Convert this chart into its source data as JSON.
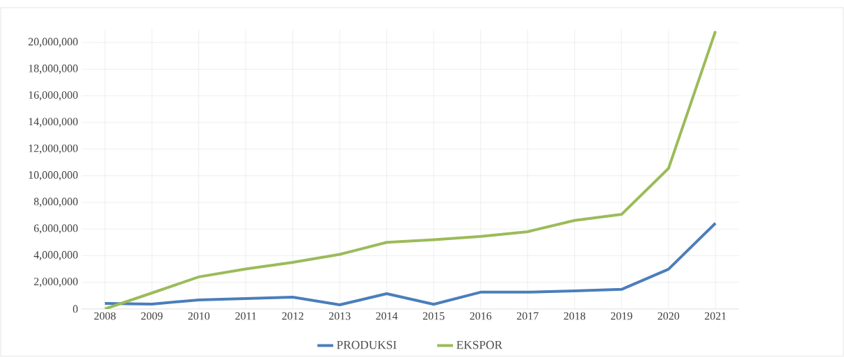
{
  "chart_data": {
    "type": "line",
    "categories": [
      "2008",
      "2009",
      "2010",
      "2011",
      "2012",
      "2013",
      "2014",
      "2015",
      "2016",
      "2017",
      "2018",
      "2019",
      "2020",
      "2021"
    ],
    "series": [
      {
        "name": "PRODUKSI",
        "color": "#4a7ebb",
        "values": [
          420000,
          370000,
          680000,
          780000,
          890000,
          310000,
          1150000,
          350000,
          1260000,
          1260000,
          1360000,
          1470000,
          2980000,
          6440000
        ]
      },
      {
        "name": "EKSPOR",
        "color": "#9bbb59",
        "values": [
          0,
          1200000,
          2410000,
          3000000,
          3500000,
          4100000,
          5000000,
          5200000,
          5450000,
          5800000,
          6650000,
          7100000,
          10550000,
          20850000
        ]
      }
    ],
    "ylim": [
      0,
      21000000
    ],
    "yticks": [
      {
        "value": 0,
        "label": "0"
      },
      {
        "value": 2000000,
        "label": "2,000,000"
      },
      {
        "value": 4000000,
        "label": "4,000,000"
      },
      {
        "value": 6000000,
        "label": "6,000,000"
      },
      {
        "value": 8000000,
        "label": "8,000,000"
      },
      {
        "value": 10000000,
        "label": "10,000,000"
      },
      {
        "value": 12000000,
        "label": "12,000,000"
      },
      {
        "value": 14000000,
        "label": "14,000,000"
      },
      {
        "value": 16000000,
        "label": "16,000,000"
      },
      {
        "value": 18000000,
        "label": "18,000,000"
      },
      {
        "value": 20000000,
        "label": "20,000,000"
      }
    ],
    "grid": true,
    "legend": "bottom",
    "marker": "none",
    "line_style": "solid"
  }
}
